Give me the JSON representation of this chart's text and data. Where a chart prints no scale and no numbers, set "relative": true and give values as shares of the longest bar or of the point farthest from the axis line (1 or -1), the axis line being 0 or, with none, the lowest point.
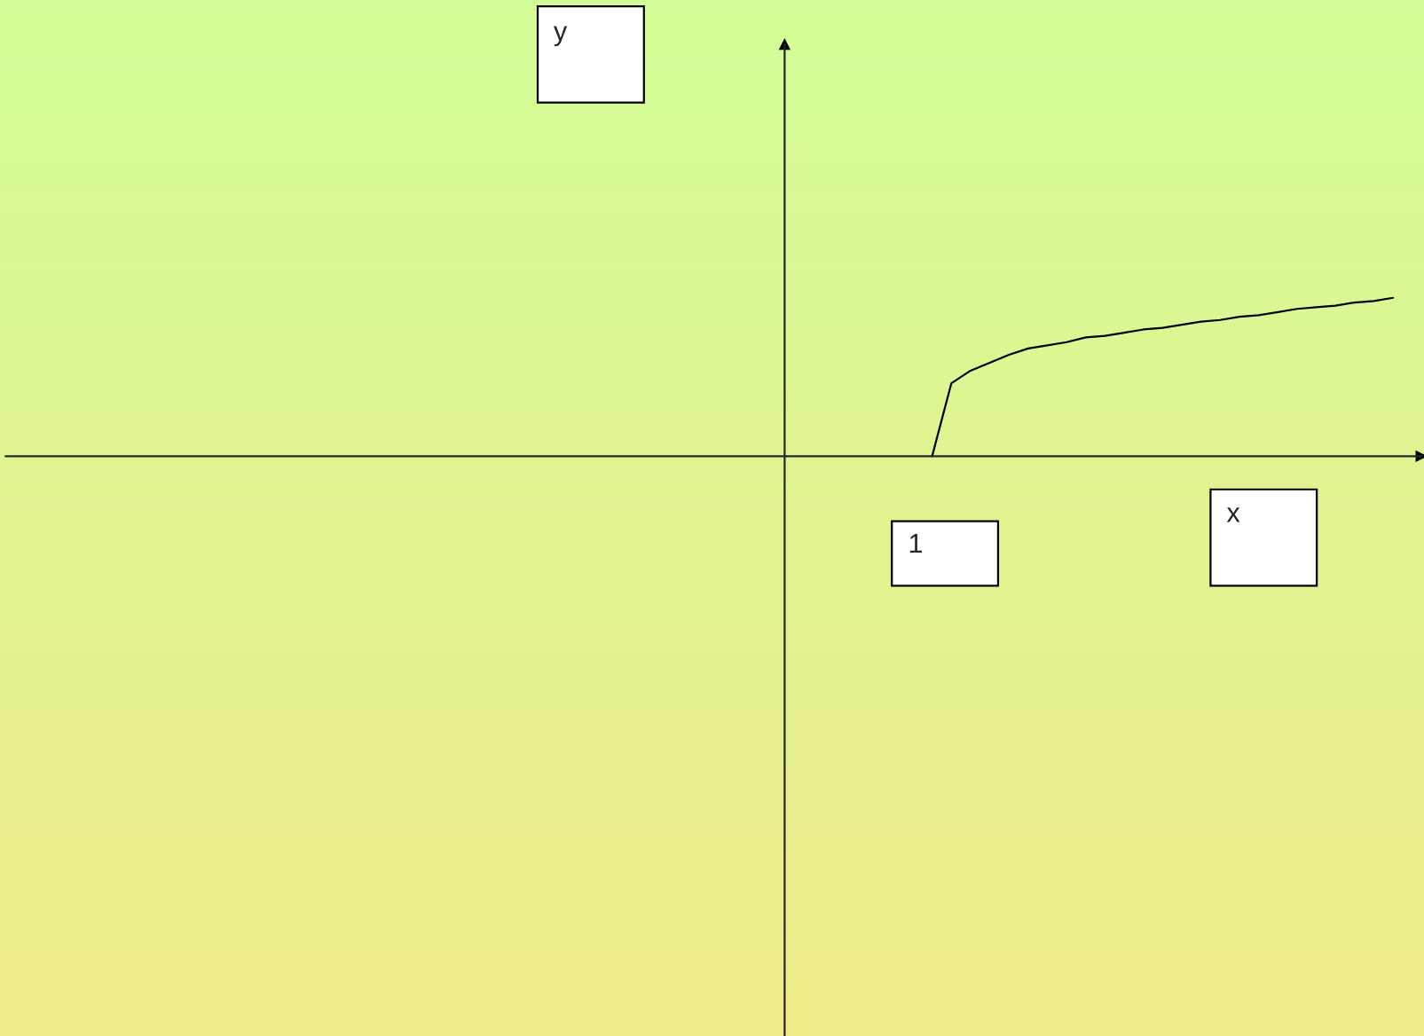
{
  "chart_data": {
    "type": "line",
    "relative": true,
    "annotations": [
      "y",
      "1",
      "x"
    ],
    "categories": [
      null,
      null,
      null,
      null,
      null,
      null,
      null,
      null,
      null,
      null,
      null,
      null,
      null,
      null,
      null,
      null,
      null,
      null,
      null,
      null,
      null,
      null,
      null,
      null,
      null
    ],
    "series": [
      {
        "color": "#000000",
        "values": [
          0,
          0.46,
          0.54,
          0.59,
          0.64,
          0.68,
          0.7,
          0.72,
          0.75,
          0.76,
          0.78,
          0.8,
          0.81,
          0.83,
          0.85,
          0.86,
          0.88,
          0.89,
          0.91,
          0.93,
          0.94,
          0.95,
          0.97,
          0.98,
          1.0
        ]
      }
    ],
    "marker": "none",
    "line_style": "solid"
  }
}
